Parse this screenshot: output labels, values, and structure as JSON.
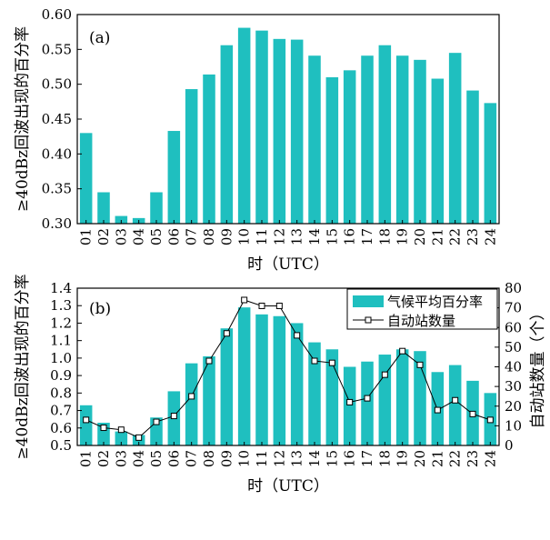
{
  "chart_data": [
    {
      "type": "bar",
      "panel_label": "(a)",
      "categories": [
        "01",
        "02",
        "03",
        "04",
        "05",
        "06",
        "07",
        "08",
        "09",
        "10",
        "11",
        "12",
        "13",
        "14",
        "15",
        "16",
        "17",
        "18",
        "19",
        "20",
        "21",
        "22",
        "23",
        "24"
      ],
      "series": [
        {
          "values": [
            0.43,
            0.345,
            0.311,
            0.308,
            0.345,
            0.433,
            0.493,
            0.514,
            0.556,
            0.581,
            0.577,
            0.565,
            0.564,
            0.541,
            0.51,
            0.52,
            0.541,
            0.556,
            0.541,
            0.535,
            0.508,
            0.545,
            0.491,
            0.473
          ]
        }
      ],
      "xlabel": "时（UTC）",
      "ylabel": "≥40dBz回波出现的百分率",
      "ylim": [
        0.3,
        0.6
      ],
      "yticks": [
        "0.30",
        "0.35",
        "0.40",
        "0.45",
        "0.50",
        "0.55",
        "0.60"
      ],
      "bar_color": "#1fbfbf"
    },
    {
      "type": "bar",
      "panel_label": "(b)",
      "categories": [
        "01",
        "02",
        "03",
        "04",
        "05",
        "06",
        "07",
        "08",
        "09",
        "10",
        "11",
        "12",
        "13",
        "14",
        "15",
        "16",
        "17",
        "18",
        "19",
        "20",
        "21",
        "22",
        "23",
        "24"
      ],
      "series": [
        {
          "name": "气候平均百分率",
          "type": "bar",
          "axis": "left",
          "values": [
            0.73,
            0.63,
            0.58,
            0.56,
            0.66,
            0.81,
            0.97,
            1.01,
            1.17,
            1.29,
            1.25,
            1.24,
            1.2,
            1.09,
            1.05,
            0.95,
            0.98,
            1.02,
            1.05,
            1.04,
            0.92,
            0.96,
            0.87,
            0.8
          ]
        },
        {
          "name": "自动站数量",
          "type": "line",
          "axis": "right",
          "values": [
            13,
            9,
            8,
            4,
            12,
            15,
            25,
            43,
            57,
            74,
            71,
            71,
            56,
            43,
            42,
            22,
            24,
            36,
            48,
            41,
            18,
            23,
            16,
            13
          ]
        }
      ],
      "xlabel": "时（UTC）",
      "ylabel": "≥40dBz回波出现的百分率",
      "y2label": "自动站数量（个）",
      "ylim": [
        0.5,
        1.4
      ],
      "yticks": [
        "0.5",
        "0.6",
        "0.7",
        "0.8",
        "0.9",
        "1.0",
        "1.1",
        "1.2",
        "1.3",
        "1.4"
      ],
      "y2lim": [
        0,
        80
      ],
      "y2ticks": [
        "0",
        "10",
        "20",
        "30",
        "40",
        "50",
        "60",
        "70",
        "80"
      ],
      "legend_position": "top-right",
      "bar_color": "#1fbfbf",
      "line_color": "#000000"
    }
  ]
}
